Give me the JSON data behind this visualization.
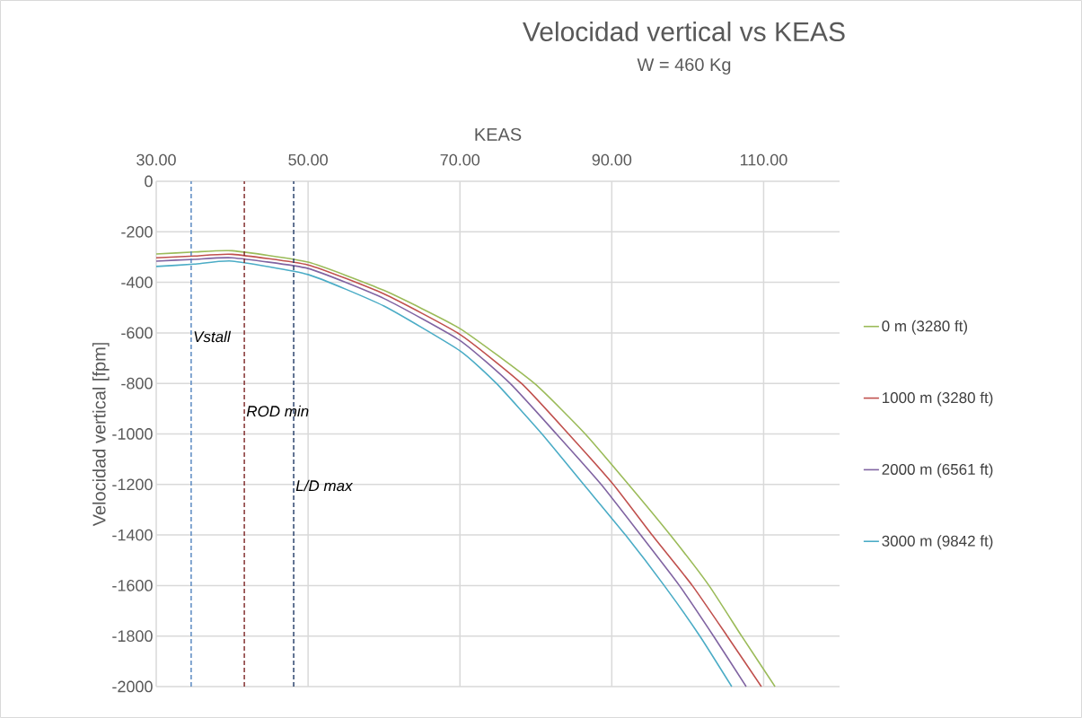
{
  "chart_data": {
    "type": "line",
    "title": "Velocidad vertical  vs KEAS",
    "subtitle": "W =  460 Kg",
    "xlabel": "KEAS",
    "ylabel": "Velocidad vertical [fpm]",
    "series": [
      {
        "name": "0 m (3280 ft)",
        "color": "#9bbb59",
        "x": [
          30,
          35,
          40,
          50,
          60,
          70,
          79.8,
          86.5,
          92.2,
          97.7,
          102.8,
          107.1,
          111.5
        ],
        "values": [
          -288,
          -280,
          -275,
          -320,
          -432,
          -583,
          -800,
          -1000,
          -1200,
          -1400,
          -1600,
          -1800,
          -2000
        ]
      },
      {
        "name": "1000 m (3280 ft)",
        "color": "#c0504d",
        "x": [
          30,
          35,
          40,
          50,
          60,
          70,
          78.1,
          84.3,
          90.2,
          95.3,
          100.6,
          105.2,
          109.7
        ],
        "values": [
          -303,
          -296,
          -289,
          -331,
          -446,
          -606,
          -800,
          -1000,
          -1200,
          -1400,
          -1600,
          -1800,
          -2000
        ]
      },
      {
        "name": "2000 m (6561 ft)",
        "color": "#8064a2",
        "x": [
          30,
          35,
          40,
          50,
          60,
          70,
          76.6,
          82.7,
          88.6,
          93.8,
          98.9,
          103.4,
          107.7
        ],
        "values": [
          -316,
          -309,
          -303,
          -345,
          -464,
          -630,
          -800,
          -1000,
          -1200,
          -1400,
          -1600,
          -1800,
          -2000
        ]
      },
      {
        "name": "3000 m (9842 ft)",
        "color": "#4bacc6",
        "x": [
          30,
          35,
          40,
          50,
          60,
          70,
          74.8,
          80.8,
          86.3,
          91.8,
          96.9,
          101.6,
          105.8
        ],
        "values": [
          -337,
          -328,
          -316,
          -369,
          -494,
          -671,
          -800,
          -1000,
          -1200,
          -1400,
          -1600,
          -1800,
          -2000
        ]
      }
    ],
    "xlim": [
      30,
      120
    ],
    "ylim": [
      -2000,
      0
    ],
    "xticks": [
      {
        "value": 30,
        "label": "30.00"
      },
      {
        "value": 50,
        "label": "50.00"
      },
      {
        "value": 70,
        "label": "70.00"
      },
      {
        "value": 90,
        "label": "90.00"
      },
      {
        "value": 110,
        "label": "110.00"
      }
    ],
    "yticks": [
      0,
      -200,
      -400,
      -600,
      -800,
      -1000,
      -1200,
      -1400,
      -1600,
      -1800,
      -2000
    ],
    "ref_lines": [
      {
        "axis": "x",
        "value": 34.6,
        "label": "Vstall",
        "color": "#4f81bd",
        "line_style": "dashed"
      },
      {
        "axis": "x",
        "value": 41.6,
        "label": "ROD min",
        "color": "#7b2323",
        "line_style": "dashed"
      },
      {
        "axis": "x",
        "value": 48.1,
        "label": "L/D max",
        "color": "#1f3864",
        "line_style": "dashed"
      }
    ],
    "grid": true,
    "legend": "right",
    "marker": "none",
    "line_style": "solid"
  }
}
